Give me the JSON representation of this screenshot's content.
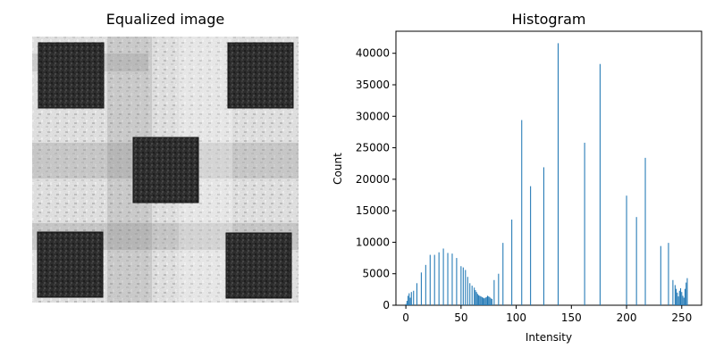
{
  "left_panel": {
    "title": "Equalized image"
  },
  "chart_data": {
    "type": "bar",
    "title": "Histogram",
    "xlabel": "Intensity",
    "ylabel": "Count",
    "xlim": [
      -9,
      268
    ],
    "ylim": [
      0,
      43500
    ],
    "grid": false,
    "bar_color": "#1f77b4",
    "x_ticks": [
      0,
      50,
      100,
      150,
      200,
      250
    ],
    "y_ticks": [
      0,
      5000,
      10000,
      15000,
      20000,
      25000,
      30000,
      35000,
      40000
    ],
    "x": [
      0,
      1,
      2,
      3,
      4,
      5,
      7,
      10,
      14,
      18,
      22,
      26,
      30,
      34,
      38,
      42,
      46,
      50,
      52,
      54,
      56,
      58,
      60,
      62,
      63,
      64,
      65,
      66,
      67,
      68,
      69,
      70,
      71,
      72,
      73,
      74,
      75,
      76,
      77,
      78,
      80,
      84,
      88,
      96,
      105,
      113,
      125,
      138,
      162,
      176,
      200,
      209,
      217,
      231,
      238,
      242,
      244,
      245,
      246,
      247,
      248,
      249,
      250,
      251,
      252,
      253,
      254,
      255
    ],
    "values": [
      200,
      700,
      1500,
      1900,
      1200,
      2100,
      2300,
      3500,
      5200,
      6400,
      8000,
      8000,
      8400,
      9000,
      8300,
      8200,
      7500,
      6200,
      6000,
      5600,
      4500,
      3500,
      3100,
      2800,
      2400,
      2100,
      1800,
      1600,
      1500,
      1400,
      1300,
      1200,
      1100,
      1200,
      1300,
      1500,
      1400,
      1300,
      1100,
      1000,
      4000,
      5000,
      9900,
      13600,
      29400,
      18900,
      21900,
      41600,
      25800,
      38300,
      17400,
      14000,
      23400,
      9400,
      9900,
      4000,
      3200,
      2600,
      2000,
      1400,
      2300,
      2700,
      2100,
      1500,
      1200,
      2600,
      3600,
      4300
    ]
  }
}
